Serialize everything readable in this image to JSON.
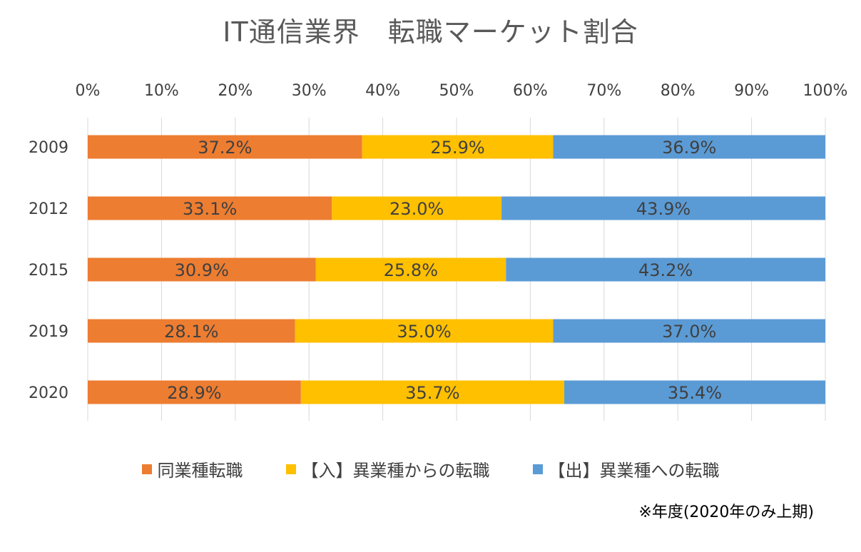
{
  "chart_data": {
    "type": "bar",
    "orientation": "horizontal",
    "stacked": true,
    "title": "IT通信業界　転職マーケット割合",
    "categories": [
      "2009",
      "2012",
      "2015",
      "2019",
      "2020"
    ],
    "series": [
      {
        "name": "同業種転職",
        "color": "#ED7D31",
        "values": [
          37.2,
          33.1,
          30.9,
          28.1,
          28.9
        ],
        "labels": [
          "37.2%",
          "33.1%",
          "30.9%",
          "28.1%",
          "28.9%"
        ]
      },
      {
        "name": "【入】異業種からの転職",
        "color": "#FFC000",
        "values": [
          25.9,
          23.0,
          25.8,
          35.0,
          35.7
        ],
        "labels": [
          "25.9%",
          "23.0%",
          "25.8%",
          "35.0%",
          "35.7%"
        ]
      },
      {
        "name": "【出】異業種への転職",
        "color": "#5B9BD5",
        "values": [
          36.9,
          43.9,
          43.2,
          37.0,
          35.4
        ],
        "labels": [
          "36.9%",
          "43.9%",
          "43.2%",
          "37.0%",
          "35.4%"
        ]
      }
    ],
    "xlim": [
      0,
      100
    ],
    "xticks": [
      "0%",
      "10%",
      "20%",
      "30%",
      "40%",
      "50%",
      "60%",
      "70%",
      "80%",
      "90%",
      "100%"
    ],
    "grid": true,
    "legend_position": "bottom",
    "note": "※年度(2020年のみ上期)"
  }
}
